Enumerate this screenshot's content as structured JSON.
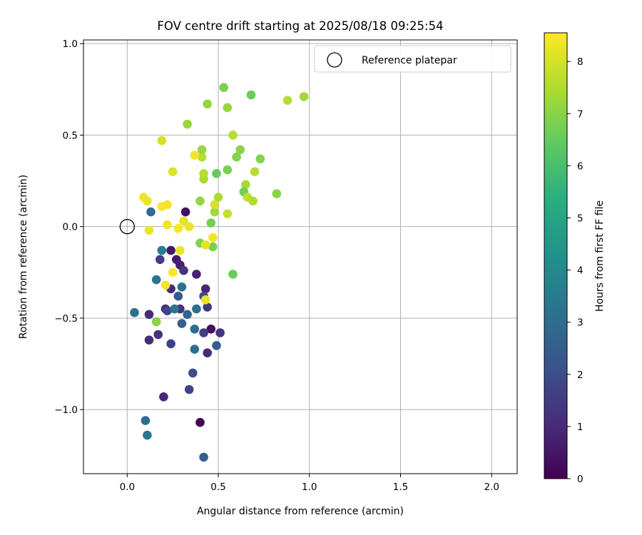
{
  "chart_data": {
    "type": "scatter",
    "title": "FOV centre drift starting at 2025/08/18 09:25:54",
    "xlabel": "Angular distance from reference (arcmin)",
    "ylabel": "Rotation from reference (arcmin)",
    "xlim": [
      -0.24,
      2.14
    ],
    "ylim": [
      -1.35,
      1.02
    ],
    "xticks": [
      0.0,
      0.5,
      1.0,
      1.5,
      2.0
    ],
    "xtick_labels": [
      "0.0",
      "0.5",
      "1.0",
      "1.5",
      "2.0"
    ],
    "yticks": [
      -1.0,
      -0.5,
      0.0,
      0.5,
      1.0
    ],
    "ytick_labels": [
      "−1.0",
      "−0.5",
      "0.0",
      "0.5",
      "1.0"
    ],
    "grid": true,
    "legend": {
      "placement": "top-right",
      "entries": [
        "Reference platepar"
      ]
    },
    "reference_point": {
      "x": 0.0,
      "y": 0.0,
      "name": "Reference platepar"
    },
    "colorbar": {
      "label": "Hours from first FF file",
      "colormap": "viridis",
      "range": [
        0,
        8.55
      ],
      "ticks": [
        0,
        1,
        2,
        3,
        4,
        5,
        6,
        7,
        8
      ],
      "tick_labels": [
        "0",
        "1",
        "2",
        "3",
        "4",
        "5",
        "6",
        "7",
        "8"
      ]
    },
    "points": [
      {
        "x": 0.4,
        "y": -1.07,
        "h": 0.0
      },
      {
        "x": 0.46,
        "y": -0.56,
        "h": 0.3
      },
      {
        "x": 0.32,
        "y": 0.08,
        "h": 0.4
      },
      {
        "x": 0.24,
        "y": -0.13,
        "h": 0.5
      },
      {
        "x": 0.27,
        "y": -0.18,
        "h": 0.6
      },
      {
        "x": 0.29,
        "y": -0.21,
        "h": 0.7
      },
      {
        "x": 0.38,
        "y": -0.26,
        "h": 0.8
      },
      {
        "x": 0.43,
        "y": -0.34,
        "h": 0.9
      },
      {
        "x": 0.24,
        "y": -0.34,
        "h": 1.0
      },
      {
        "x": 0.21,
        "y": -0.45,
        "h": 1.1
      },
      {
        "x": 0.12,
        "y": -0.48,
        "h": 1.0
      },
      {
        "x": 0.2,
        "y": -0.93,
        "h": 0.9
      },
      {
        "x": 0.44,
        "y": -0.69,
        "h": 1.0
      },
      {
        "x": 0.17,
        "y": -0.59,
        "h": 1.2
      },
      {
        "x": 0.12,
        "y": -0.62,
        "h": 1.1
      },
      {
        "x": 0.51,
        "y": -0.58,
        "h": 1.3
      },
      {
        "x": 0.42,
        "y": -0.58,
        "h": 1.5
      },
      {
        "x": 0.24,
        "y": -0.64,
        "h": 1.6
      },
      {
        "x": 0.34,
        "y": -0.89,
        "h": 1.7
      },
      {
        "x": 0.36,
        "y": -0.8,
        "h": 2.0
      },
      {
        "x": 0.31,
        "y": -0.24,
        "h": 1.3
      },
      {
        "x": 0.29,
        "y": -0.45,
        "h": 1.2
      },
      {
        "x": 0.44,
        "y": -0.44,
        "h": 1.4
      },
      {
        "x": 0.18,
        "y": -0.18,
        "h": 1.6
      },
      {
        "x": 0.22,
        "y": -0.46,
        "h": 1.8
      },
      {
        "x": 0.42,
        "y": -0.38,
        "h": 1.9
      },
      {
        "x": 0.28,
        "y": -0.38,
        "h": 2.4
      },
      {
        "x": 0.3,
        "y": -0.53,
        "h": 2.6
      },
      {
        "x": 0.33,
        "y": -0.48,
        "h": 2.8
      },
      {
        "x": 0.37,
        "y": -0.56,
        "h": 3.0
      },
      {
        "x": 0.49,
        "y": -0.65,
        "h": 2.5
      },
      {
        "x": 0.37,
        "y": -0.67,
        "h": 3.2
      },
      {
        "x": 0.42,
        "y": -1.26,
        "h": 2.6
      },
      {
        "x": 0.1,
        "y": -1.06,
        "h": 3.1
      },
      {
        "x": 0.11,
        "y": -1.14,
        "h": 3.4
      },
      {
        "x": 0.04,
        "y": -0.47,
        "h": 3.2
      },
      {
        "x": 0.16,
        "y": -0.29,
        "h": 3.3
      },
      {
        "x": 0.19,
        "y": -0.13,
        "h": 3.5
      },
      {
        "x": 0.13,
        "y": 0.08,
        "h": 3.0
      },
      {
        "x": 0.26,
        "y": -0.45,
        "h": 3.3
      },
      {
        "x": 0.3,
        "y": -0.33,
        "h": 3.2
      },
      {
        "x": 0.38,
        "y": -0.45,
        "h": 3.1
      },
      {
        "x": 0.16,
        "y": -0.52,
        "h": 7.0
      },
      {
        "x": 0.58,
        "y": -0.26,
        "h": 6.6
      },
      {
        "x": 0.47,
        "y": -0.11,
        "h": 6.8
      },
      {
        "x": 0.4,
        "y": -0.09,
        "h": 6.9
      },
      {
        "x": 0.46,
        "y": 0.02,
        "h": 6.7
      },
      {
        "x": 0.48,
        "y": 0.08,
        "h": 7.3
      },
      {
        "x": 0.4,
        "y": 0.14,
        "h": 7.1
      },
      {
        "x": 0.5,
        "y": 0.16,
        "h": 7.5
      },
      {
        "x": 0.55,
        "y": 0.07,
        "h": 7.8
      },
      {
        "x": 0.48,
        "y": 0.12,
        "h": 8.0
      },
      {
        "x": 0.42,
        "y": 0.26,
        "h": 7.4
      },
      {
        "x": 0.42,
        "y": 0.29,
        "h": 7.6
      },
      {
        "x": 0.49,
        "y": 0.29,
        "h": 6.5
      },
      {
        "x": 0.55,
        "y": 0.31,
        "h": 6.8
      },
      {
        "x": 0.41,
        "y": 0.38,
        "h": 7.6
      },
      {
        "x": 0.41,
        "y": 0.42,
        "h": 7.2
      },
      {
        "x": 0.6,
        "y": 0.38,
        "h": 6.9
      },
      {
        "x": 0.62,
        "y": 0.42,
        "h": 7.0
      },
      {
        "x": 0.58,
        "y": 0.5,
        "h": 7.6
      },
      {
        "x": 0.33,
        "y": 0.56,
        "h": 7.2
      },
      {
        "x": 0.44,
        "y": 0.67,
        "h": 7.1
      },
      {
        "x": 0.55,
        "y": 0.65,
        "h": 7.2
      },
      {
        "x": 0.53,
        "y": 0.76,
        "h": 6.8
      },
      {
        "x": 0.68,
        "y": 0.72,
        "h": 6.6
      },
      {
        "x": 0.88,
        "y": 0.69,
        "h": 7.6
      },
      {
        "x": 0.97,
        "y": 0.71,
        "h": 7.3
      },
      {
        "x": 0.73,
        "y": 0.37,
        "h": 6.9
      },
      {
        "x": 0.7,
        "y": 0.3,
        "h": 7.6
      },
      {
        "x": 0.65,
        "y": 0.23,
        "h": 7.4
      },
      {
        "x": 0.64,
        "y": 0.19,
        "h": 6.7
      },
      {
        "x": 0.66,
        "y": 0.16,
        "h": 7.7
      },
      {
        "x": 0.69,
        "y": 0.14,
        "h": 7.5
      },
      {
        "x": 0.82,
        "y": 0.18,
        "h": 7.0
      },
      {
        "x": 0.09,
        "y": 0.16,
        "h": 8.4
      },
      {
        "x": 0.11,
        "y": 0.14,
        "h": 8.3
      },
      {
        "x": 0.19,
        "y": 0.11,
        "h": 8.5
      },
      {
        "x": 0.22,
        "y": 0.12,
        "h": 8.4
      },
      {
        "x": 0.12,
        "y": -0.02,
        "h": 8.3
      },
      {
        "x": 0.22,
        "y": 0.01,
        "h": 8.4
      },
      {
        "x": 0.28,
        "y": -0.01,
        "h": 8.5
      },
      {
        "x": 0.31,
        "y": 0.03,
        "h": 8.2
      },
      {
        "x": 0.34,
        "y": 0.0,
        "h": 8.3
      },
      {
        "x": 0.19,
        "y": 0.47,
        "h": 8.0
      },
      {
        "x": 0.25,
        "y": 0.3,
        "h": 8.1
      },
      {
        "x": 0.37,
        "y": 0.39,
        "h": 8.4
      },
      {
        "x": 0.29,
        "y": -0.13,
        "h": 8.3
      },
      {
        "x": 0.25,
        "y": -0.25,
        "h": 8.5
      },
      {
        "x": 0.21,
        "y": -0.32,
        "h": 8.4
      },
      {
        "x": 0.43,
        "y": -0.1,
        "h": 8.2
      },
      {
        "x": 0.47,
        "y": -0.06,
        "h": 8.4
      },
      {
        "x": 0.43,
        "y": -0.4,
        "h": 8.3
      }
    ]
  }
}
